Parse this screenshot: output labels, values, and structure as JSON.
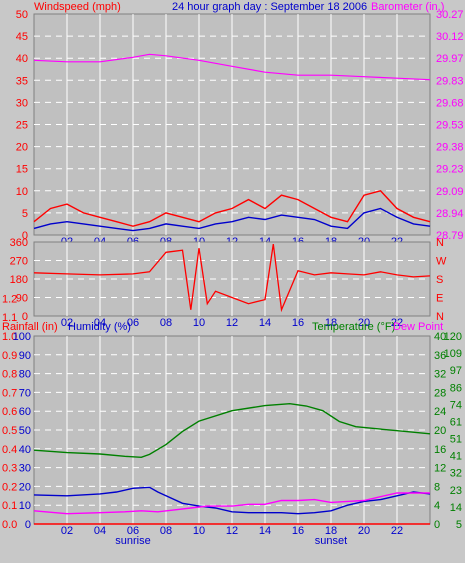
{
  "header": {
    "left_label": "Windspeed (mph)",
    "center_label": "24 hour graph day : September 18 2006",
    "right_label": "Barometer (in.)"
  },
  "lower_header": {
    "rain_label": "Rainfall (in)",
    "humidity_label": "Humidity (%)",
    "temp_label": "Temperature (°F)",
    "dew_label": "Dew Point"
  },
  "colors": {
    "frame_bg": "#c8c8c8",
    "plot_bg": "#c0c0c0",
    "grid": "#ffffff",
    "wind": "#ff0000",
    "wind_avg": "#0000cc",
    "barometer": "#ff00ff",
    "direction": "#ff0000",
    "humidity": "#0000cc",
    "rain": "#ff0000",
    "temperature": "#008000",
    "dewpoint": "#ff00ff",
    "axis_red": "#ff0000",
    "axis_blue": "#0000cc",
    "axis_green": "#008000",
    "axis_magenta": "#ff00ff"
  },
  "chart_data": [
    {
      "type": "line",
      "panel": "wind_barometer",
      "x_ticks": [
        "02",
        "04",
        "06",
        "08",
        "10",
        "12",
        "14",
        "16",
        "18",
        "20",
        "22"
      ],
      "x_annotations": [
        {
          "label": "sunrise",
          "hour": 6
        },
        {
          "label": "sunset",
          "hour": 18
        }
      ],
      "y_left_ticks": [
        "0",
        "5",
        "10",
        "15",
        "20",
        "25",
        "30",
        "35",
        "40",
        "45",
        "50"
      ],
      "y_left_range": [
        0,
        50
      ],
      "y_right_ticks": [
        "28.79",
        "28.94",
        "29.09",
        "29.23",
        "29.38",
        "29.53",
        "29.68",
        "29.83",
        "29.97",
        "30.12",
        "30.27"
      ],
      "y_right_range": [
        28.79,
        30.27
      ],
      "series": [
        {
          "name": "Windspeed (mph)",
          "axis": "left",
          "x": [
            0,
            1,
            2,
            3,
            4,
            5,
            6,
            7,
            8,
            9,
            10,
            11,
            12,
            13,
            14,
            15,
            16,
            17,
            18,
            19,
            20,
            21,
            22,
            23,
            24
          ],
          "y": [
            3,
            6,
            7,
            5,
            4,
            3,
            2,
            3,
            5,
            4,
            3,
            5,
            6,
            8,
            6,
            9,
            8,
            6,
            4,
            3,
            9,
            10,
            6,
            4,
            3
          ]
        },
        {
          "name": "Wind average",
          "axis": "left",
          "x": [
            0,
            1,
            2,
            3,
            4,
            5,
            6,
            7,
            8,
            9,
            10,
            11,
            12,
            13,
            14,
            15,
            16,
            17,
            18,
            19,
            20,
            21,
            22,
            23,
            24
          ],
          "y": [
            1.5,
            2.5,
            3,
            2.5,
            2,
            1.5,
            1,
            1.5,
            2.5,
            2,
            1.5,
            2.5,
            3,
            4,
            3.5,
            4.5,
            4,
            3.5,
            2,
            1.5,
            5,
            6,
            4,
            2.5,
            2
          ]
        },
        {
          "name": "Barometer (in.)",
          "axis": "right",
          "x": [
            0,
            2,
            4,
            6,
            7,
            8,
            10,
            12,
            14,
            16,
            18,
            20,
            22,
            24
          ],
          "y": [
            29.96,
            29.95,
            29.95,
            29.98,
            30.0,
            29.99,
            29.96,
            29.92,
            29.88,
            29.86,
            29.86,
            29.85,
            29.84,
            29.83
          ]
        }
      ]
    },
    {
      "type": "line",
      "panel": "wind_direction",
      "x_ticks": [
        "02",
        "04",
        "06",
        "08",
        "10",
        "12",
        "14",
        "16",
        "18",
        "20",
        "22"
      ],
      "y_left_ticks": [
        "0",
        "90",
        "180",
        "270",
        "360"
      ],
      "y_left_range": [
        0,
        360
      ],
      "y_right_ticks": [
        "N",
        "E",
        "S",
        "W",
        "N"
      ],
      "series": [
        {
          "name": "Wind direction",
          "axis": "left",
          "x": [
            0,
            2,
            4,
            6,
            7,
            8,
            9,
            9.5,
            10,
            10.5,
            11,
            12,
            13,
            14,
            14.5,
            15,
            16,
            17,
            18,
            19,
            20,
            21,
            22,
            23,
            24
          ],
          "y": [
            210,
            205,
            200,
            205,
            215,
            310,
            320,
            30,
            330,
            60,
            120,
            90,
            60,
            80,
            350,
            30,
            220,
            200,
            210,
            205,
            200,
            215,
            200,
            190,
            195
          ]
        }
      ]
    },
    {
      "type": "line",
      "panel": "rain_humidity_temp",
      "x_ticks": [
        "02",
        "04",
        "06",
        "08",
        "10",
        "12",
        "14",
        "16",
        "18",
        "20",
        "22"
      ],
      "x_annotations": [
        {
          "label": "sunrise",
          "hour": 6
        },
        {
          "label": "sunset",
          "hour": 18
        }
      ],
      "y_left_outer_ticks": [
        "0.0",
        "0.1",
        "0.2",
        "0.3",
        "0.4",
        "0.5",
        "0.6",
        "0.7",
        "0.8",
        "0.9",
        "1.0",
        "1.1",
        "1.2"
      ],
      "y_left_inner_ticks": [
        "0",
        "10",
        "20",
        "30",
        "40",
        "50",
        "60",
        "70",
        "80",
        "90",
        "100"
      ],
      "y_right_inner_ticks": [
        "0",
        "4",
        "8",
        "12",
        "16",
        "20",
        "24",
        "28",
        "32",
        "36",
        "40"
      ],
      "y_right_outer_ticks": [
        "5",
        "14",
        "23",
        "32",
        "41",
        "51",
        "61",
        "74",
        "86",
        "97",
        "109",
        "120"
      ],
      "series": [
        {
          "name": "Temperature (°F)",
          "axis": "right_outer_C",
          "x": [
            0,
            2,
            4,
            5.5,
            6.5,
            7,
            8,
            9,
            10,
            12,
            14,
            15.5,
            16.5,
            17.5,
            18.5,
            19.5,
            21,
            22.5,
            24
          ],
          "y": [
            15.7,
            15.2,
            14.9,
            14.4,
            14.2,
            14.8,
            16.9,
            19.7,
            21.9,
            24.1,
            25.2,
            25.6,
            25.1,
            24.1,
            21.8,
            20.7,
            20.2,
            19.7,
            19.2
          ]
        },
        {
          "name": "Humidity (%)",
          "axis": "left_inner",
          "x": [
            0,
            2,
            4,
            5,
            6,
            7,
            7.5,
            8,
            9,
            10,
            11,
            12,
            13,
            14,
            15,
            16,
            17,
            18,
            19,
            20,
            21,
            22,
            23,
            24
          ],
          "y": [
            15.5,
            15,
            16,
            17,
            19,
            19.5,
            17,
            15,
            11,
            9.5,
            8.5,
            6.5,
            6,
            6,
            6,
            5.5,
            6,
            7,
            10,
            12,
            13,
            15,
            17,
            16
          ]
        },
        {
          "name": "Dew Point",
          "axis": "left_inner",
          "x": [
            0,
            2,
            4,
            5.5,
            6.5,
            7.5,
            8.5,
            9.5,
            10.5,
            12,
            13,
            14,
            15,
            16,
            17,
            18,
            19,
            20,
            21,
            22,
            23,
            24
          ],
          "y": [
            7,
            5.5,
            6,
            6.5,
            7,
            6.5,
            7.5,
            8.5,
            9.5,
            9.5,
            10.5,
            10.5,
            12.5,
            12.5,
            13,
            11.5,
            12,
            12.5,
            14.5,
            16.5,
            16.5,
            16.5
          ]
        },
        {
          "name": "Rainfall (in)",
          "axis": "left_outer",
          "x": [
            0,
            24
          ],
          "y": [
            0,
            0
          ]
        }
      ]
    }
  ]
}
